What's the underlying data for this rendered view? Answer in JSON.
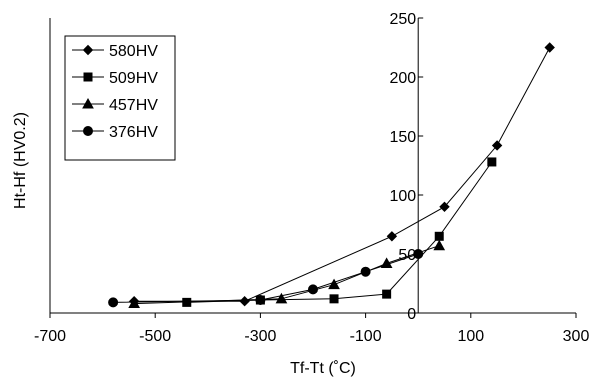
{
  "chart_data": {
    "type": "line",
    "title": "",
    "xlabel": "Tf-Tt  (˚C)",
    "ylabel": "Ht-Hf  (HV0.2)",
    "xlim": [
      -700,
      300
    ],
    "ylim": [
      0,
      250
    ],
    "xticks": [
      -700,
      -500,
      -300,
      -100,
      100,
      300
    ],
    "yticks": [
      0,
      50,
      100,
      150,
      200,
      250
    ],
    "xtick_labels": [
      "-700",
      "-500",
      "-300",
      "-100",
      "100",
      "300"
    ],
    "ytick_labels": [
      "0",
      "50",
      "100",
      "150",
      "200",
      "250"
    ],
    "grid": false,
    "legend_position": "top-left",
    "series": [
      {
        "name": "580HV",
        "marker": "diamond",
        "points": [
          [
            -540,
            10
          ],
          [
            -330,
            10
          ],
          [
            -50,
            65
          ],
          [
            50,
            90
          ],
          [
            150,
            142
          ],
          [
            250,
            225
          ]
        ]
      },
      {
        "name": "509HV",
        "marker": "square",
        "points": [
          [
            -440,
            9
          ],
          [
            -300,
            11
          ],
          [
            -160,
            12
          ],
          [
            -60,
            16
          ],
          [
            40,
            65
          ],
          [
            140,
            128
          ]
        ]
      },
      {
        "name": "457HV",
        "marker": "triangle",
        "points": [
          [
            -540,
            8
          ],
          [
            -260,
            12
          ],
          [
            -160,
            24
          ],
          [
            -60,
            42
          ],
          [
            40,
            57
          ]
        ]
      },
      {
        "name": "376HV",
        "marker": "circle",
        "points": [
          [
            -580,
            9
          ],
          [
            -300,
            11
          ],
          [
            -200,
            20
          ],
          [
            -100,
            35
          ],
          [
            0,
            50
          ]
        ]
      }
    ]
  }
}
